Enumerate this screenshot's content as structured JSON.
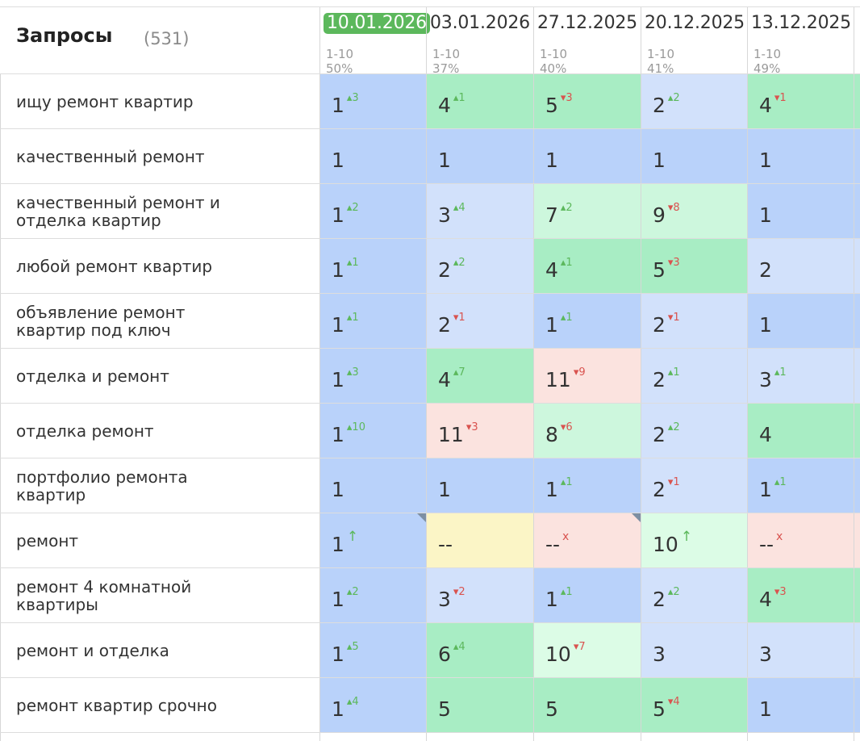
{
  "header": {
    "title": "Запросы",
    "count": "(531)",
    "columns": [
      {
        "date": "10.01.2026",
        "range": "1-10",
        "pct": "50%"
      },
      {
        "date": "03.01.2026",
        "range": "1-10",
        "pct": "37%"
      },
      {
        "date": "27.12.2025",
        "range": "1-10",
        "pct": "40%"
      },
      {
        "date": "20.12.2025",
        "range": "1-10",
        "pct": "41%"
      },
      {
        "date": "13.12.2025",
        "range": "1-10",
        "pct": "49%"
      }
    ]
  },
  "rows": [
    {
      "query": "ищу ремонт квартир",
      "cells": [
        {
          "v": "1",
          "c": "▴3",
          "d": "up",
          "bg": "b"
        },
        {
          "v": "4",
          "c": "▴1",
          "d": "up",
          "bg": "g"
        },
        {
          "v": "5",
          "c": "▾3",
          "d": "down",
          "bg": "g"
        },
        {
          "v": "2",
          "c": "▴2",
          "d": "up",
          "bg": "lb"
        },
        {
          "v": "4",
          "c": "▾1",
          "d": "down",
          "bg": "g"
        }
      ]
    },
    {
      "query": "качественный ремонт",
      "cells": [
        {
          "v": "1",
          "c": "",
          "d": "",
          "bg": "b"
        },
        {
          "v": "1",
          "c": "",
          "d": "",
          "bg": "b"
        },
        {
          "v": "1",
          "c": "",
          "d": "",
          "bg": "b"
        },
        {
          "v": "1",
          "c": "",
          "d": "",
          "bg": "b"
        },
        {
          "v": "1",
          "c": "",
          "d": "",
          "bg": "b"
        }
      ]
    },
    {
      "query": "качественный ремонт и\nотделка квартир",
      "cells": [
        {
          "v": "1",
          "c": "▴2",
          "d": "up",
          "bg": "b"
        },
        {
          "v": "3",
          "c": "▴4",
          "d": "up",
          "bg": "lb"
        },
        {
          "v": "7",
          "c": "▴2",
          "d": "up",
          "bg": "lg"
        },
        {
          "v": "9",
          "c": "▾8",
          "d": "down",
          "bg": "lg"
        },
        {
          "v": "1",
          "c": "",
          "d": "",
          "bg": "b"
        }
      ]
    },
    {
      "query": "любой ремонт квартир",
      "cells": [
        {
          "v": "1",
          "c": "▴1",
          "d": "up",
          "bg": "b"
        },
        {
          "v": "2",
          "c": "▴2",
          "d": "up",
          "bg": "lb"
        },
        {
          "v": "4",
          "c": "▴1",
          "d": "up",
          "bg": "g"
        },
        {
          "v": "5",
          "c": "▾3",
          "d": "down",
          "bg": "g"
        },
        {
          "v": "2",
          "c": "",
          "d": "",
          "bg": "lb"
        }
      ]
    },
    {
      "query": "объявление ремонт\nквартир под ключ",
      "cells": [
        {
          "v": "1",
          "c": "▴1",
          "d": "up",
          "bg": "b"
        },
        {
          "v": "2",
          "c": "▾1",
          "d": "down",
          "bg": "lb"
        },
        {
          "v": "1",
          "c": "▴1",
          "d": "up",
          "bg": "b"
        },
        {
          "v": "2",
          "c": "▾1",
          "d": "down",
          "bg": "lb"
        },
        {
          "v": "1",
          "c": "",
          "d": "",
          "bg": "b"
        }
      ]
    },
    {
      "query": "отделка и ремонт",
      "cells": [
        {
          "v": "1",
          "c": "▴3",
          "d": "up",
          "bg": "b"
        },
        {
          "v": "4",
          "c": "▴7",
          "d": "up",
          "bg": "g"
        },
        {
          "v": "11",
          "c": "▾9",
          "d": "down",
          "bg": "r"
        },
        {
          "v": "2",
          "c": "▴1",
          "d": "up",
          "bg": "lb"
        },
        {
          "v": "3",
          "c": "▴1",
          "d": "up",
          "bg": "lb"
        }
      ]
    },
    {
      "query": "отделка ремонт",
      "cells": [
        {
          "v": "1",
          "c": "▴10",
          "d": "up",
          "bg": "b"
        },
        {
          "v": "11",
          "c": "▾3",
          "d": "down",
          "bg": "r"
        },
        {
          "v": "8",
          "c": "▾6",
          "d": "down",
          "bg": "lg"
        },
        {
          "v": "2",
          "c": "▴2",
          "d": "up",
          "bg": "lb"
        },
        {
          "v": "4",
          "c": "",
          "d": "",
          "bg": "g"
        }
      ]
    },
    {
      "query": "портфолио ремонта\nквартир",
      "cells": [
        {
          "v": "1",
          "c": "",
          "d": "",
          "bg": "b"
        },
        {
          "v": "1",
          "c": "",
          "d": "",
          "bg": "b"
        },
        {
          "v": "1",
          "c": "▴1",
          "d": "up",
          "bg": "b"
        },
        {
          "v": "2",
          "c": "▾1",
          "d": "down",
          "bg": "lb"
        },
        {
          "v": "1",
          "c": "▴1",
          "d": "up",
          "bg": "b"
        }
      ]
    },
    {
      "query": "ремонт",
      "cells": [
        {
          "v": "1",
          "c": "↑",
          "d": "upb",
          "bg": "b",
          "corner": true
        },
        {
          "v": "--",
          "c": "",
          "d": "",
          "bg": "y"
        },
        {
          "v": "--",
          "c": "x",
          "d": "x",
          "bg": "r",
          "corner": true
        },
        {
          "v": "10",
          "c": "↑",
          "d": "upb",
          "bg": "vg"
        },
        {
          "v": "--",
          "c": "x",
          "d": "x",
          "bg": "r"
        }
      ]
    },
    {
      "query": "ремонт 4 комнатной\nквартиры",
      "cells": [
        {
          "v": "1",
          "c": "▴2",
          "d": "up",
          "bg": "b"
        },
        {
          "v": "3",
          "c": "▾2",
          "d": "down",
          "bg": "lb"
        },
        {
          "v": "1",
          "c": "▴1",
          "d": "up",
          "bg": "b"
        },
        {
          "v": "2",
          "c": "▴2",
          "d": "up",
          "bg": "lb"
        },
        {
          "v": "4",
          "c": "▾3",
          "d": "down",
          "bg": "g"
        }
      ]
    },
    {
      "query": "ремонт и отделка",
      "cells": [
        {
          "v": "1",
          "c": "▴5",
          "d": "up",
          "bg": "b"
        },
        {
          "v": "6",
          "c": "▴4",
          "d": "up",
          "bg": "g"
        },
        {
          "v": "10",
          "c": "▾7",
          "d": "down",
          "bg": "vg"
        },
        {
          "v": "3",
          "c": "",
          "d": "",
          "bg": "lb"
        },
        {
          "v": "3",
          "c": "",
          "d": "",
          "bg": "lb"
        }
      ]
    },
    {
      "query": "ремонт квартир срочно",
      "cells": [
        {
          "v": "1",
          "c": "▴4",
          "d": "up",
          "bg": "b"
        },
        {
          "v": "5",
          "c": "",
          "d": "",
          "bg": "g"
        },
        {
          "v": "5",
          "c": "",
          "d": "",
          "bg": "g"
        },
        {
          "v": "5",
          "c": "▾4",
          "d": "down",
          "bg": "g"
        },
        {
          "v": "1",
          "c": "",
          "d": "",
          "bg": "b"
        }
      ]
    }
  ],
  "colors": {
    "current_date_bg": "#5cb85c",
    "position_top": "#b9d2fa",
    "position_good": "#a8edc4",
    "position_bad": "#fbe3df",
    "position_none": "#fbf5c6",
    "change_up": "#5cb85c",
    "change_down": "#d9534f"
  }
}
